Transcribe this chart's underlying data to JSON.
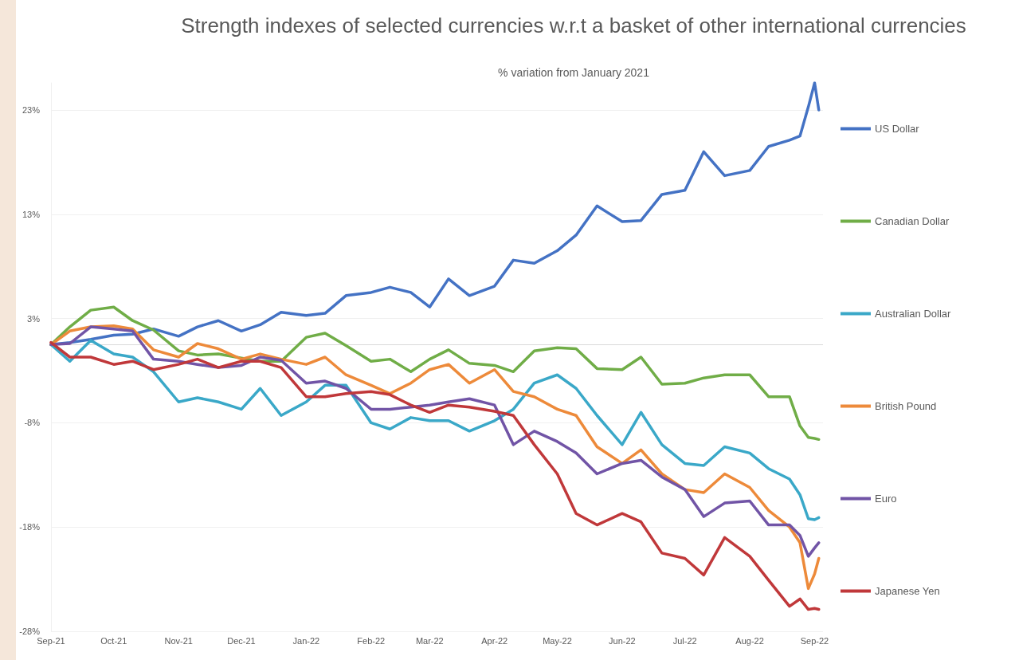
{
  "chart_data": {
    "type": "line",
    "title": "Strength indexes of selected currencies w.r.t a basket of other international currencies",
    "subtitle": "% variation from January 2021",
    "x": [
      "2021-09-01",
      "2021-09-10",
      "2021-09-20",
      "2021-10-01",
      "2021-10-10",
      "2021-10-20",
      "2021-11-01",
      "2021-11-10",
      "2021-11-20",
      "2021-12-01",
      "2021-12-10",
      "2021-12-20",
      "2022-01-01",
      "2022-01-10",
      "2022-01-20",
      "2022-02-01",
      "2022-02-10",
      "2022-02-20",
      "2022-03-01",
      "2022-03-10",
      "2022-03-20",
      "2022-04-01",
      "2022-04-10",
      "2022-04-20",
      "2022-05-01",
      "2022-05-10",
      "2022-05-20",
      "2022-06-01",
      "2022-06-10",
      "2022-06-20",
      "2022-07-01",
      "2022-07-10",
      "2022-07-20",
      "2022-08-01",
      "2022-08-10",
      "2022-08-20",
      "2022-08-25",
      "2022-08-29",
      "2022-09-01",
      "2022-09-03"
    ],
    "series": [
      {
        "name": "US Dollar",
        "color": "#4472c4",
        "values": [
          0,
          0.2,
          0.5,
          0.9,
          1.0,
          1.5,
          0.8,
          1.7,
          2.3,
          1.3,
          1.9,
          3.1,
          2.8,
          3.0,
          4.7,
          5.0,
          5.5,
          5.0,
          3.6,
          6.3,
          4.7,
          5.6,
          8.1,
          7.8,
          9.0,
          10.5,
          13.3,
          11.8,
          11.9,
          14.4,
          14.8,
          18.5,
          16.2,
          16.7,
          19.0,
          19.6,
          20.0,
          22.8,
          25.1,
          22.5
        ]
      },
      {
        "name": "Canadian Dollar",
        "color": "#70ad47",
        "values": [
          0,
          1.7,
          3.3,
          3.6,
          2.3,
          1.4,
          -0.6,
          -1.0,
          -0.9,
          -1.3,
          -1.6,
          -1.6,
          0.7,
          1.1,
          -0.1,
          -1.6,
          -1.4,
          -2.6,
          -1.4,
          -0.5,
          -1.8,
          -2.0,
          -2.6,
          -0.6,
          -0.3,
          -0.4,
          -2.3,
          -2.4,
          -1.2,
          -3.8,
          -3.7,
          -3.2,
          -2.9,
          -2.9,
          -5.0,
          -5.0,
          -7.8,
          -8.9,
          -9.0,
          -9.1
        ]
      },
      {
        "name": "Australian Dollar",
        "color": "#3aa8c8",
        "values": [
          0,
          -1.6,
          0.4,
          -0.9,
          -1.2,
          -2.6,
          -5.5,
          -5.1,
          -5.5,
          -6.2,
          -4.2,
          -6.8,
          -5.5,
          -3.9,
          -3.9,
          -7.5,
          -8.1,
          -7.0,
          -7.3,
          -7.3,
          -8.3,
          -7.3,
          -6.2,
          -3.7,
          -2.9,
          -4.2,
          -6.8,
          -9.6,
          -6.5,
          -9.6,
          -11.4,
          -11.6,
          -9.8,
          -10.4,
          -11.9,
          -12.9,
          -14.4,
          -16.7,
          -16.8,
          -16.6
        ]
      },
      {
        "name": "British Pound",
        "color": "#ed8a3a",
        "values": [
          0,
          1.3,
          1.7,
          1.8,
          1.5,
          -0.5,
          -1.2,
          0.1,
          -0.4,
          -1.4,
          -0.9,
          -1.4,
          -1.9,
          -1.2,
          -2.9,
          -3.9,
          -4.7,
          -3.7,
          -2.4,
          -1.9,
          -3.7,
          -2.4,
          -4.5,
          -5.0,
          -6.2,
          -6.8,
          -9.8,
          -11.4,
          -10.1,
          -12.4,
          -13.9,
          -14.2,
          -12.4,
          -13.7,
          -15.9,
          -17.5,
          -19.0,
          -23.4,
          -22.0,
          -20.5
        ]
      },
      {
        "name": "Euro",
        "color": "#7154a6",
        "values": [
          0,
          0.1,
          1.7,
          1.5,
          1.3,
          -1.4,
          -1.6,
          -1.9,
          -2.2,
          -2.0,
          -1.2,
          -1.5,
          -3.7,
          -3.5,
          -4.2,
          -6.2,
          -6.2,
          -6.0,
          -5.8,
          -5.5,
          -5.2,
          -5.8,
          -9.6,
          -8.3,
          -9.3,
          -10.4,
          -12.4,
          -11.4,
          -11.1,
          -12.7,
          -13.9,
          -16.5,
          -15.2,
          -15.0,
          -17.3,
          -17.3,
          -18.3,
          -20.3,
          -19.5,
          -19.0
        ]
      },
      {
        "name": "Japanese Yen",
        "color": "#c0383a",
        "values": [
          0.2,
          -1.2,
          -1.2,
          -1.9,
          -1.6,
          -2.4,
          -1.9,
          -1.4,
          -2.2,
          -1.6,
          -1.6,
          -2.2,
          -5.0,
          -5.0,
          -4.7,
          -4.5,
          -4.8,
          -5.8,
          -6.5,
          -5.8,
          -6.0,
          -6.4,
          -6.8,
          -9.6,
          -12.4,
          -16.2,
          -17.3,
          -16.2,
          -17.0,
          -20.0,
          -20.5,
          -22.1,
          -18.5,
          -20.3,
          -22.6,
          -25.1,
          -24.4,
          -25.4,
          -25.3,
          -25.4
        ]
      }
    ],
    "xlim": [
      "2021-09-01",
      "2022-09-05"
    ],
    "xticks": [
      {
        "value": "2021-09-01",
        "label": "Sep-21"
      },
      {
        "value": "2021-10-01",
        "label": "Oct-21"
      },
      {
        "value": "2021-11-01",
        "label": "Nov-21"
      },
      {
        "value": "2021-12-01",
        "label": "Dec-21"
      },
      {
        "value": "2022-01-01",
        "label": "Jan-22"
      },
      {
        "value": "2022-02-01",
        "label": "Feb-22"
      },
      {
        "value": "2022-03-01",
        "label": "Mar-22"
      },
      {
        "value": "2022-04-01",
        "label": "Apr-22"
      },
      {
        "value": "2022-05-01",
        "label": "May-22"
      },
      {
        "value": "2022-06-01",
        "label": "Jun-22"
      },
      {
        "value": "2022-07-01",
        "label": "Jul-22"
      },
      {
        "value": "2022-08-01",
        "label": "Aug-22"
      },
      {
        "value": "2022-09-01",
        "label": "Sep-22"
      }
    ],
    "ylim": [
      -27.5,
      25.1
    ],
    "yticks": [
      {
        "value": -27.5,
        "label": "-28%"
      },
      {
        "value": -17.5,
        "label": "-18%"
      },
      {
        "value": -7.5,
        "label": "-8%"
      },
      {
        "value": 2.5,
        "label": "3%"
      },
      {
        "value": 12.5,
        "label": "13%"
      },
      {
        "value": 22.5,
        "label": "23%"
      }
    ],
    "ref_lines": [
      {
        "axis": "y",
        "value": 0,
        "color": "#d9d9d9"
      }
    ],
    "grid": "y",
    "legend": "right",
    "marker": "none",
    "line_style": "solid"
  }
}
